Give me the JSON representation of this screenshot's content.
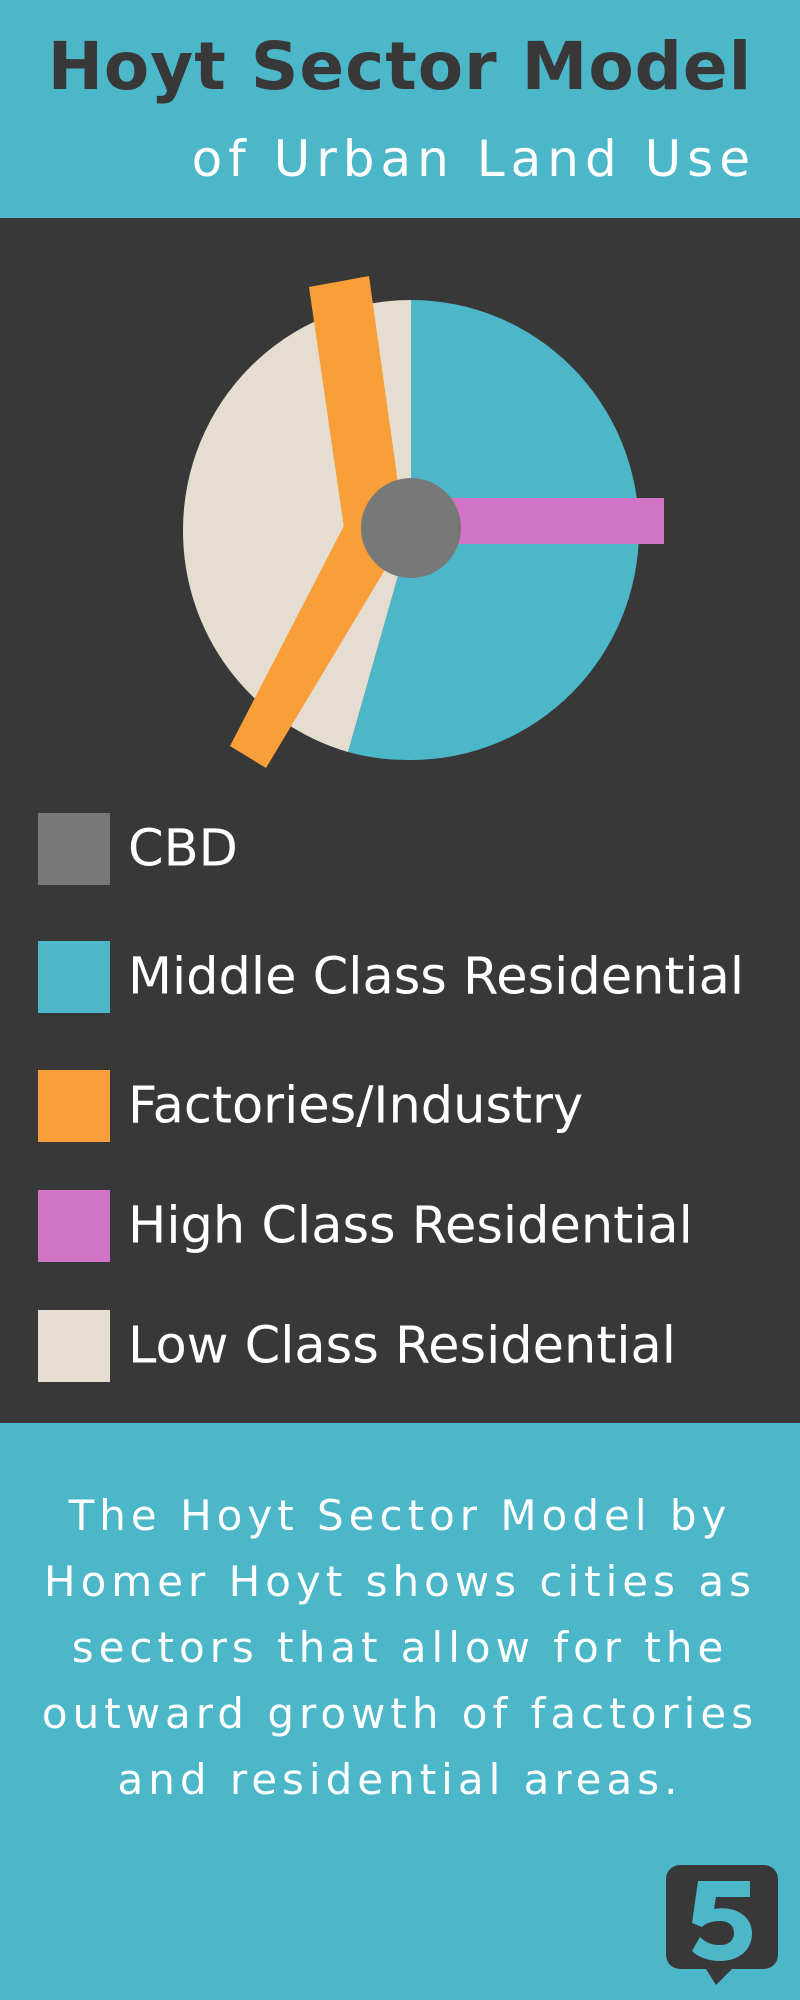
{
  "header": {
    "title": "Hoyt Sector Model",
    "subtitle": "of Urban Land Use"
  },
  "legend": {
    "items": [
      {
        "label": "CBD",
        "color": "#787878"
      },
      {
        "label": "Middle Class Residential",
        "color": "#4bb7c8"
      },
      {
        "label": "Factories/Industry",
        "color": "#f89f3a"
      },
      {
        "label": "High Class Residential",
        "color": "#d274c5"
      },
      {
        "label": "Low Class Residential",
        "color": "#e5ded0"
      }
    ]
  },
  "description": "The Hoyt Sector Model by Homer Hoyt shows cities as sectors that allow for the outward growth of factories and residential areas.",
  "colors": {
    "background_teal": "#4bb7c8",
    "panel_dark": "#393838",
    "title_dark": "#393838"
  },
  "icons": {
    "logo": "speech-bubble-five-logo"
  }
}
